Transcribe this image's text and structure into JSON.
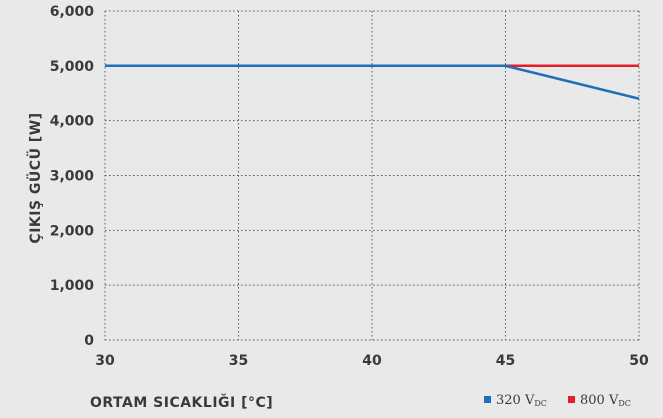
{
  "chart_data": {
    "type": "line",
    "xlabel": "ORTAM SICAKLIĞI [°C]",
    "ylabel": "ÇIKIŞ GÜCÜ [W]",
    "xlim": [
      30,
      50
    ],
    "ylim": [
      0,
      6000
    ],
    "x_ticks": [
      "30",
      "35",
      "40",
      "45",
      "50"
    ],
    "y_ticks": [
      "0",
      "1,000",
      "2,000",
      "3,000",
      "4,000",
      "5,000",
      "6,000"
    ],
    "grid": true,
    "legend_position": "bottom-right",
    "series": [
      {
        "name": "320 V",
        "name_subscript": "DC",
        "color": "#1f6fba",
        "x": [
          30,
          45,
          50
        ],
        "y": [
          5000,
          5000,
          4400
        ]
      },
      {
        "name": "800 V",
        "name_subscript": "DC",
        "color": "#e3202a",
        "x": [
          30,
          45,
          50
        ],
        "y": [
          5000,
          5000,
          5000
        ]
      }
    ]
  }
}
